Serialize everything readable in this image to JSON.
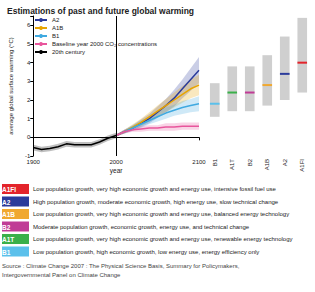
{
  "chart_data": [
    {
      "type": "line",
      "title": "Estimations of past and future global warming",
      "x_label": "year",
      "y_label": "average global surface warming (°C)",
      "xlim": [
        1900,
        2100
      ],
      "xticks": [
        1900,
        2000,
        2100
      ],
      "ylim": [
        -1,
        6.5
      ],
      "yticks": [
        -1,
        0,
        1,
        2,
        3,
        4,
        5,
        6
      ],
      "grid": false,
      "legend": "upper left",
      "divider_x": 2000,
      "series": [
        {
          "name": "A2",
          "color": "#2b3b9b",
          "x": [
            2000,
            2010,
            2020,
            2030,
            2040,
            2050,
            2060,
            2070,
            2080,
            2090,
            2100
          ],
          "values": [
            0.1,
            0.3,
            0.5,
            0.75,
            1.0,
            1.35,
            1.7,
            2.1,
            2.6,
            3.1,
            3.6
          ],
          "band_low": [
            0.05,
            0.2,
            0.35,
            0.55,
            0.75,
            1.05,
            1.35,
            1.65,
            2.1,
            2.5,
            2.9
          ],
          "band_high": [
            0.15,
            0.4,
            0.65,
            0.95,
            1.25,
            1.65,
            2.05,
            2.55,
            3.1,
            3.7,
            4.3
          ]
        },
        {
          "name": "A1B",
          "color": "#e8a400",
          "x": [
            2000,
            2010,
            2020,
            2030,
            2040,
            2050,
            2060,
            2070,
            2080,
            2090,
            2100
          ],
          "values": [
            0.1,
            0.3,
            0.55,
            0.8,
            1.1,
            1.4,
            1.7,
            2.0,
            2.3,
            2.6,
            2.8
          ],
          "band_low": [
            0.05,
            0.2,
            0.4,
            0.6,
            0.85,
            1.1,
            1.35,
            1.6,
            1.85,
            2.1,
            2.25
          ],
          "band_high": [
            0.15,
            0.4,
            0.7,
            1.0,
            1.35,
            1.7,
            2.05,
            2.4,
            2.75,
            3.1,
            3.35
          ]
        },
        {
          "name": "B1",
          "color": "#3fa9e0",
          "x": [
            2000,
            2010,
            2020,
            2030,
            2040,
            2050,
            2060,
            2070,
            2080,
            2090,
            2100
          ],
          "values": [
            0.1,
            0.3,
            0.5,
            0.7,
            0.9,
            1.1,
            1.3,
            1.45,
            1.6,
            1.7,
            1.8
          ],
          "band_low": [
            0.05,
            0.2,
            0.35,
            0.5,
            0.7,
            0.85,
            1.0,
            1.15,
            1.25,
            1.35,
            1.4
          ],
          "band_high": [
            0.15,
            0.4,
            0.65,
            0.9,
            1.1,
            1.35,
            1.6,
            1.75,
            1.95,
            2.05,
            2.2
          ]
        },
        {
          "name": "Baseline year 2000 CO₂ concentrations",
          "color": "#e8559c",
          "x": [
            2000,
            2010,
            2020,
            2030,
            2040,
            2050,
            2060,
            2070,
            2080,
            2090,
            2100
          ],
          "values": [
            0.1,
            0.3,
            0.4,
            0.45,
            0.5,
            0.5,
            0.55,
            0.55,
            0.6,
            0.6,
            0.6
          ],
          "band_low": [
            0.05,
            0.2,
            0.3,
            0.3,
            0.35,
            0.35,
            0.35,
            0.35,
            0.4,
            0.4,
            0.4
          ],
          "band_high": [
            0.15,
            0.4,
            0.5,
            0.6,
            0.65,
            0.65,
            0.75,
            0.75,
            0.8,
            0.8,
            0.8
          ]
        },
        {
          "name": "20th century",
          "color": "#000000",
          "x": [
            1900,
            1910,
            1920,
            1930,
            1940,
            1950,
            1960,
            1970,
            1980,
            1990,
            2000
          ],
          "values": [
            -0.55,
            -0.65,
            -0.6,
            -0.5,
            -0.35,
            -0.4,
            -0.4,
            -0.4,
            -0.25,
            -0.05,
            0.1
          ],
          "band_low": [
            -0.7,
            -0.8,
            -0.75,
            -0.65,
            -0.5,
            -0.55,
            -0.55,
            -0.55,
            -0.4,
            -0.2,
            -0.05
          ],
          "band_high": [
            -0.4,
            -0.5,
            -0.45,
            -0.35,
            -0.2,
            -0.25,
            -0.25,
            -0.25,
            -0.1,
            0.1,
            0.25
          ]
        }
      ]
    },
    {
      "type": "range",
      "categories": [
        "B1",
        "A1T",
        "B2",
        "A1B",
        "A2",
        "A1FI"
      ],
      "values": [
        1.8,
        2.4,
        2.4,
        2.8,
        3.4,
        4.0
      ],
      "low": [
        1.1,
        1.4,
        1.4,
        1.7,
        2.0,
        2.4
      ],
      "high": [
        2.9,
        3.8,
        3.8,
        4.4,
        5.4,
        6.4
      ],
      "colors": [
        "#5bc0eb",
        "#3ab04a",
        "#c03c96",
        "#f0a830",
        "#2b3b9b",
        "#e3242b"
      ],
      "ylim": [
        -1,
        6.5
      ],
      "tick_labels": "x"
    }
  ],
  "key": [
    {
      "code": "A1FI",
      "color": "#e3242b",
      "text": "Low population growth, very high economic growth and energy use, intensive fossil fuel use"
    },
    {
      "code": "A2",
      "color": "#2b3b9b",
      "text": "High population growth, moderate economic growth, high energy use, slow technical change"
    },
    {
      "code": "A1B",
      "color": "#f0a830",
      "text": "Low population growth, very high economic growth and energy use, balanced energy technology"
    },
    {
      "code": "B2",
      "color": "#c03c96",
      "text": "Moderate population growth, economic growth, energy use, and technical change"
    },
    {
      "code": "A1T",
      "color": "#3ab04a",
      "text": "Low population growth, very high economic growth and energy use, renewable energy technology"
    },
    {
      "code": "B1",
      "color": "#5bc0eb",
      "text": "Low population growth, high economic growth, low energy use, energy efficiency only"
    }
  ],
  "source": [
    "Source : Climate Change 2007 : The Physical Science Basis, Summary for Policymakers,",
    "Intergovernmental Panel on Climate Change"
  ]
}
